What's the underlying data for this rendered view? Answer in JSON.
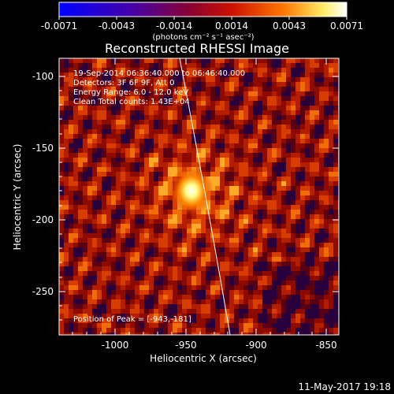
{
  "colorbar": {
    "tick_labels": [
      "-0.0071",
      "-0.0043",
      "-0.0014",
      "0.0014",
      "0.0043",
      "0.0071"
    ],
    "unit_label": "(photons cm⁻² s⁻¹ asec⁻²)"
  },
  "plot": {
    "title": "Reconstructed RHESSI Image",
    "info_lines": [
      "19-Sep-2014 06:36:40.000 to 06:46:40.000",
      "Detectors: 3F 6F 9F, Att 0",
      "Energy Range: 6.0 - 12.0 keV",
      "Clean    Total counts: 1.43E+04"
    ],
    "peak_label": "Position of Peak = [-943,-181]"
  },
  "axes": {
    "x_label": "Heliocentric X (arcsec)",
    "y_label": "Heliocentric Y (arcsec)",
    "x_ticks": [
      "-1000",
      "-950",
      "-900",
      "-850"
    ],
    "y_ticks": [
      "-100",
      "-150",
      "-200",
      "-250"
    ]
  },
  "footer": {
    "timestamp": "11-May-2017 19:18"
  },
  "colors": {
    "background": "#000000",
    "colormap": [
      "#0000ff",
      "#7700aa",
      "#cc0000",
      "#ff6600",
      "#ffff99",
      "#ffffff"
    ]
  }
}
